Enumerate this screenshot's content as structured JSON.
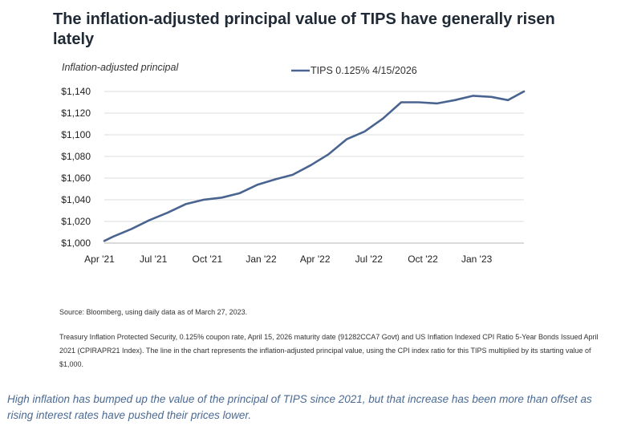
{
  "title": "The inflation-adjusted principal value of TIPS have generally risen lately",
  "source_text": "Source: Bloomberg, using daily data as of March 27, 2023.",
  "note_text": "Treasury Inflation Protected Security, 0.125% coupon rate, April 15, 2026 maturity date (91282CCA7 Govt) and US Inflation Indexed CPI Ratio 5-Year Bonds Issued April 2021 (CPIRAPR21 Index). The line in the chart represents the inflation-adjusted principal value, using the CPI index ratio for this TIPS multiplied by its starting value of $1,000.",
  "caption": "High inflation has bumped up the value of the principal of TIPS since 2021, but that increase has been more than offset as rising interest rates have pushed their prices lower.",
  "chart_data": {
    "type": "line",
    "title": "The inflation-adjusted principal value of TIPS have generally risen lately",
    "ylabel": "Inflation-adjusted principal",
    "xlabel": "",
    "x_tick_labels": [
      "Apr '21",
      "Jul '21",
      "Oct '21",
      "Jan '22",
      "Apr '22",
      "Jul '22",
      "Oct '22",
      "Jan '23"
    ],
    "y_tick_labels": [
      "$1,000",
      "$1,020",
      "$1,040",
      "$1,060",
      "$1,080",
      "$1,100",
      "$1,120",
      "$1,140"
    ],
    "ylim": [
      1000,
      1140
    ],
    "xlim": [
      "2021-04-15",
      "2023-03-27"
    ],
    "grid": "horizontal",
    "legend_position": "top",
    "line_color": "#4a6491",
    "series": [
      {
        "name": "TIPS 0.125% 4/15/2026",
        "points": [
          {
            "x": "2021-04-15",
            "y": 1002
          },
          {
            "x": "2021-04-30",
            "y": 1006
          },
          {
            "x": "2021-05-31",
            "y": 1013
          },
          {
            "x": "2021-06-30",
            "y": 1021
          },
          {
            "x": "2021-07-31",
            "y": 1028
          },
          {
            "x": "2021-08-31",
            "y": 1036
          },
          {
            "x": "2021-09-30",
            "y": 1040
          },
          {
            "x": "2021-10-31",
            "y": 1042
          },
          {
            "x": "2021-11-30",
            "y": 1046
          },
          {
            "x": "2021-12-31",
            "y": 1054
          },
          {
            "x": "2022-01-31",
            "y": 1059
          },
          {
            "x": "2022-02-28",
            "y": 1063
          },
          {
            "x": "2022-03-31",
            "y": 1072
          },
          {
            "x": "2022-04-30",
            "y": 1082
          },
          {
            "x": "2022-05-31",
            "y": 1096
          },
          {
            "x": "2022-06-30",
            "y": 1103
          },
          {
            "x": "2022-07-31",
            "y": 1115
          },
          {
            "x": "2022-08-31",
            "y": 1130
          },
          {
            "x": "2022-09-30",
            "y": 1130
          },
          {
            "x": "2022-10-31",
            "y": 1129
          },
          {
            "x": "2022-11-30",
            "y": 1132
          },
          {
            "x": "2022-12-31",
            "y": 1136
          },
          {
            "x": "2023-01-31",
            "y": 1135
          },
          {
            "x": "2023-02-28",
            "y": 1132
          },
          {
            "x": "2023-03-27",
            "y": 1140
          }
        ]
      }
    ]
  }
}
